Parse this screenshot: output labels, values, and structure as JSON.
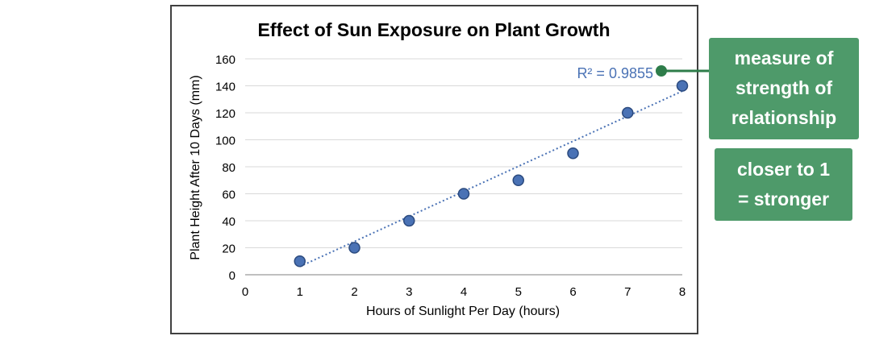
{
  "chart_data": {
    "type": "scatter",
    "title": "Effect of Sun Exposure on Plant Growth",
    "xlabel": "Hours of Sunlight Per Day (hours)",
    "ylabel": "Plant Height After 10 Days (mm)",
    "xlim": [
      0,
      8
    ],
    "ylim": [
      0,
      160
    ],
    "x_ticks": [
      0,
      1,
      2,
      3,
      4,
      5,
      6,
      7,
      8
    ],
    "y_ticks": [
      0,
      20,
      40,
      60,
      80,
      100,
      120,
      140,
      160
    ],
    "grid": true,
    "x": [
      1,
      2,
      3,
      4,
      5,
      6,
      7,
      8
    ],
    "y": [
      10,
      20,
      40,
      60,
      70,
      90,
      120,
      140
    ],
    "trendline": {
      "type": "linear",
      "slope": 18.57,
      "intercept": -12.5,
      "style": "dotted"
    },
    "r2_label": "R² = 0.9855"
  },
  "callouts": {
    "strength_lines": [
      "measure of",
      "strength of",
      "relationship"
    ],
    "closer_lines": [
      "closer to 1",
      "= stronger"
    ]
  },
  "colors": {
    "marker_fill": "#4a72b5",
    "marker_stroke": "#2b4a7e",
    "trendline": "#4a72b5",
    "r2_text": "#4a72b5",
    "callout_bg": "#4e9a6a",
    "callout_connector": "#2e7d4a",
    "gridline": "#d9d9d9",
    "axis": "#808080",
    "text": "#000000"
  }
}
